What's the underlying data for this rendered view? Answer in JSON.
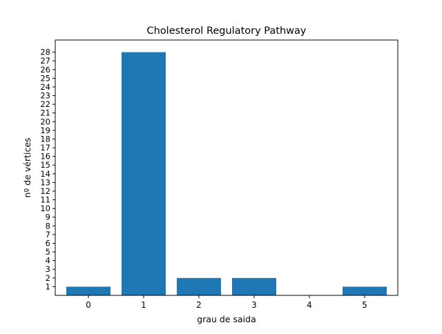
{
  "chart_data": {
    "type": "bar",
    "title": "Cholesterol Regulatory Pathway",
    "xlabel": "grau de saida",
    "ylabel": "nº de vértices",
    "categories": [
      "0",
      "1",
      "2",
      "3",
      "4",
      "5"
    ],
    "values": [
      1,
      28,
      2,
      2,
      0,
      1
    ],
    "yticks": [
      1,
      2,
      3,
      4,
      5,
      6,
      7,
      8,
      9,
      10,
      11,
      12,
      13,
      14,
      15,
      16,
      17,
      18,
      19,
      20,
      21,
      22,
      23,
      24,
      25,
      26,
      27,
      28
    ],
    "ylim": [
      0,
      29.4
    ],
    "grid": false,
    "legend": "none",
    "bar_color": "#1f77b4"
  }
}
